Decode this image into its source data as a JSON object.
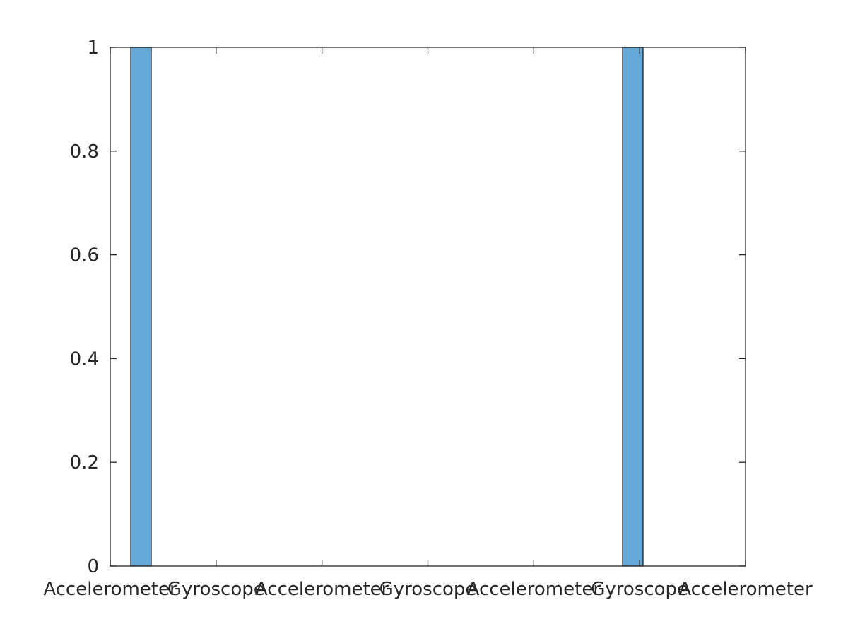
{
  "chart_data": {
    "type": "bar",
    "x": [
      0,
      1,
      2,
      3,
      4,
      5,
      6,
      7,
      8,
      9,
      10,
      11,
      12,
      13,
      14,
      15,
      16,
      17,
      18,
      19,
      20,
      21,
      22,
      23,
      24,
      25,
      26,
      27,
      28,
      29
    ],
    "values": [
      1,
      0,
      0,
      0,
      0,
      0,
      0,
      0,
      0,
      0,
      0,
      0,
      0,
      0,
      0,
      0,
      0,
      0,
      0,
      0,
      0,
      0,
      0,
      0,
      1,
      0,
      0,
      0,
      0,
      0
    ],
    "xlim": [
      -1.5,
      29.5
    ],
    "ylim": [
      0,
      1
    ],
    "x_ticks": [
      -1.5,
      3.66667,
      8.83333,
      14,
      19.16667,
      24.33333,
      29.5
    ],
    "x_tick_labels": [
      "Accelerometer",
      "Gyroscope",
      "Accelerometer",
      "Gyroscope",
      "Accelerometer",
      "Gyroscope",
      "Accelerometer"
    ],
    "y_ticks": [
      0,
      0.2,
      0.4,
      0.6,
      0.8,
      1
    ],
    "y_tick_labels": [
      "0",
      "0.2",
      "0.4",
      "0.6",
      "0.8",
      "1"
    ],
    "title": "",
    "xlabel": "",
    "ylabel": "",
    "grid": false,
    "colors": {
      "bar_fill": "#66a9d8",
      "bar_edge": "#111111",
      "axis": "#262626",
      "text": "#262626",
      "background": "#ffffff"
    }
  }
}
